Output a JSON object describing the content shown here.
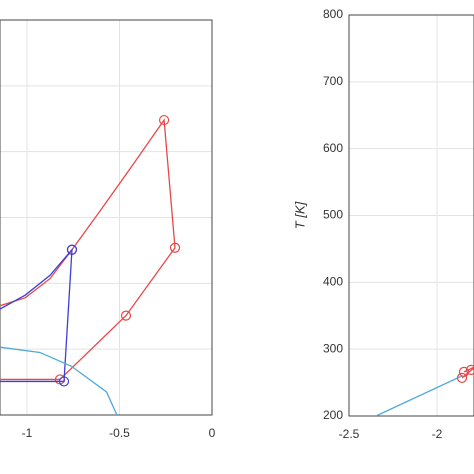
{
  "chart_data": [
    {
      "type": "line",
      "xlim": [
        -1.146,
        0
      ],
      "ylim": [
        200,
        800
      ],
      "xticks": [
        -1,
        -0.5,
        0
      ],
      "yticks": [
        200,
        300,
        400,
        500,
        600,
        700,
        800
      ],
      "grid": true,
      "series": [
        {
          "color": "#e8474a",
          "marker": "none",
          "x": [
            -1.146,
            -1.01,
            -0.876,
            -0.757,
            -0.605,
            -0.443,
            -0.259,
            -0.2,
            -0.465,
            -0.822,
            -1.146
          ],
          "values": [
            366,
            378,
            407,
            451,
            510,
            574,
            648,
            454,
            351,
            254,
            254
          ]
        },
        {
          "color": "#e8474a",
          "marker": "o",
          "x": [
            -0.259,
            -0.2,
            -0.465,
            -0.822,
            -0.757
          ],
          "values": [
            648,
            454,
            351,
            254,
            451
          ]
        },
        {
          "color": "#3b3fd6",
          "marker": "none",
          "x": [
            -1.146,
            -1.01,
            -0.876,
            -0.757,
            -0.8,
            -1.146
          ],
          "values": [
            361,
            382,
            412,
            451,
            251,
            251
          ]
        },
        {
          "color": "#3b3fd6",
          "marker": "o",
          "x": [
            -0.757,
            -0.8
          ],
          "values": [
            451,
            251
          ]
        },
        {
          "color": "#4fa8dc",
          "marker": "none",
          "x": [
            -1.146,
            -0.93,
            -0.76,
            -0.57,
            -0.514
          ],
          "values": [
            303,
            295,
            274,
            235,
            200
          ]
        }
      ]
    },
    {
      "type": "line",
      "ylabel": "T [K]",
      "xlim": [
        -2.5,
        -1.79
      ],
      "ylim": [
        200,
        800
      ],
      "xticks": [
        -2.5,
        -2
      ],
      "yticks": [
        200,
        300,
        400,
        500,
        600,
        700,
        800
      ],
      "grid": true,
      "series": [
        {
          "color": "#4fa8dc",
          "marker": "none",
          "x": [
            -2.347,
            -1.858
          ],
          "values": [
            200,
            260
          ]
        },
        {
          "color": "#e8474a",
          "marker": "none",
          "x": [
            -1.858,
            -1.79
          ],
          "values": [
            257,
            272
          ]
        },
        {
          "color": "#e8474a",
          "marker": "none",
          "x": [
            -1.847,
            -1.79
          ],
          "values": [
            266,
            273
          ]
        },
        {
          "color": "#e8474a",
          "marker": "o",
          "x": [
            -1.858,
            -1.847,
            -1.807
          ],
          "values": [
            257,
            266,
            269
          ]
        }
      ]
    }
  ]
}
